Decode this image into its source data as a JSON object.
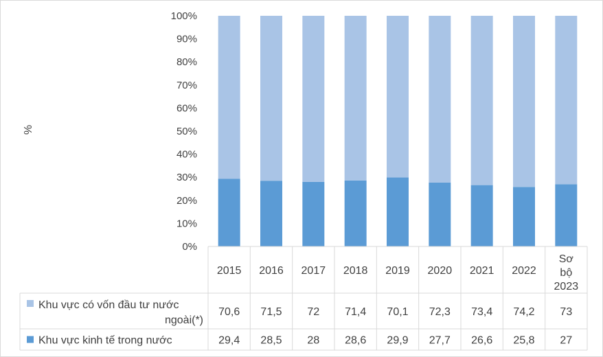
{
  "chart_data": {
    "type": "bar",
    "stacked": true,
    "percent": true,
    "title": "",
    "xlabel": "",
    "ylabel": "%",
    "ylim": [
      0,
      100
    ],
    "yticks": [
      "0%",
      "10%",
      "20%",
      "30%",
      "40%",
      "50%",
      "60%",
      "70%",
      "80%",
      "90%",
      "100%"
    ],
    "grid": false,
    "legend_position": "data-table-left",
    "categories": [
      "2015",
      "2016",
      "2017",
      "2018",
      "2019",
      "2020",
      "2021",
      "2022",
      "Sơ bộ 2023"
    ],
    "series": [
      {
        "name": "Khu vực kinh tế trong nước",
        "color": "#5b9bd5",
        "values": [
          29.4,
          28.5,
          28,
          28.6,
          29.9,
          27.7,
          26.6,
          25.8,
          27
        ],
        "labels": [
          "29,4",
          "28,5",
          "28",
          "28,6",
          "29,9",
          "27,7",
          "26,6",
          "25,8",
          "27"
        ]
      },
      {
        "name": "Khu vực có vốn đầu tư nước ngoài(*)",
        "color": "#a9c4e6",
        "values": [
          70.6,
          71.5,
          72,
          71.4,
          70.1,
          72.3,
          73.4,
          74.2,
          73
        ],
        "labels": [
          "70,6",
          "71,5",
          "72",
          "71,4",
          "70,1",
          "72,3",
          "73,4",
          "74,2",
          "73"
        ]
      }
    ]
  }
}
